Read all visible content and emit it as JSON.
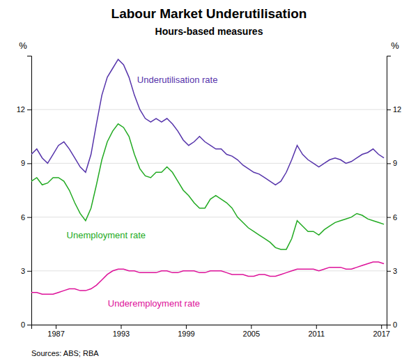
{
  "chart_data": {
    "type": "line",
    "title": "Labour Market Underutilisation",
    "subtitle": "Hours-based measures",
    "y_label": "%",
    "y2_label": "%",
    "source": "Sources: ABS; RBA",
    "grid": true,
    "xlim": [
      1984.75,
      2017.5
    ],
    "xticks": [
      1987,
      1993,
      1999,
      2005,
      2011,
      2017
    ],
    "ylim": [
      0,
      15
    ],
    "yticks": [
      0,
      3,
      6,
      9,
      12
    ],
    "y2lim": [
      0,
      15
    ],
    "y2ticks": [
      0,
      3,
      6,
      9,
      12
    ],
    "x": [
      1984.75,
      1985.25,
      1985.75,
      1986.25,
      1986.75,
      1987.25,
      1987.75,
      1988.25,
      1988.75,
      1989.25,
      1989.75,
      1990.25,
      1990.75,
      1991.25,
      1991.75,
      1992.25,
      1992.75,
      1993.25,
      1993.75,
      1994.25,
      1994.75,
      1995.25,
      1995.75,
      1996.25,
      1996.75,
      1997.25,
      1997.75,
      1998.25,
      1998.75,
      1999.25,
      1999.75,
      2000.25,
      2000.75,
      2001.25,
      2001.75,
      2002.25,
      2002.75,
      2003.25,
      2003.75,
      2004.25,
      2004.75,
      2005.25,
      2005.75,
      2006.25,
      2006.75,
      2007.25,
      2007.75,
      2008.25,
      2008.75,
      2009.25,
      2009.75,
      2010.25,
      2010.75,
      2011.25,
      2011.75,
      2012.25,
      2012.75,
      2013.25,
      2013.75,
      2014.25,
      2014.75,
      2015.25,
      2015.75,
      2016.25,
      2016.75,
      2017.25
    ],
    "series": [
      {
        "color": "#5533aa",
        "values": [
          9.5,
          9.8,
          9.3,
          9.0,
          9.5,
          10.0,
          10.2,
          9.8,
          9.3,
          8.8,
          8.5,
          9.5,
          11.2,
          12.8,
          13.8,
          14.3,
          14.8,
          14.5,
          13.8,
          12.8,
          12.0,
          11.5,
          11.3,
          11.5,
          11.3,
          11.5,
          11.2,
          10.8,
          10.3,
          10.0,
          10.2,
          10.5,
          10.2,
          10.0,
          9.8,
          9.8,
          9.5,
          9.4,
          9.2,
          8.9,
          8.7,
          8.5,
          8.4,
          8.2,
          8.0,
          7.8,
          8.0,
          8.5,
          9.2,
          10.0,
          9.5,
          9.2,
          9.0,
          8.8,
          9.0,
          9.2,
          9.3,
          9.2,
          9.0,
          9.1,
          9.3,
          9.5,
          9.6,
          9.8,
          9.5,
          9.3
        ]
      },
      {
        "color": "#22aa22",
        "values": [
          8.0,
          8.2,
          7.8,
          7.9,
          8.2,
          8.2,
          8.0,
          7.5,
          6.8,
          6.2,
          5.8,
          6.5,
          7.8,
          9.2,
          10.2,
          10.8,
          11.2,
          11.0,
          10.5,
          9.5,
          8.7,
          8.3,
          8.2,
          8.5,
          8.5,
          8.8,
          8.5,
          8.0,
          7.5,
          7.2,
          6.8,
          6.5,
          6.5,
          7.0,
          7.2,
          7.0,
          6.8,
          6.5,
          6.0,
          5.7,
          5.4,
          5.2,
          5.0,
          4.8,
          4.6,
          4.3,
          4.2,
          4.2,
          4.8,
          5.8,
          5.5,
          5.2,
          5.2,
          5.0,
          5.3,
          5.5,
          5.7,
          5.8,
          5.9,
          6.0,
          6.2,
          6.1,
          5.9,
          5.8,
          5.7,
          5.6
        ]
      },
      {
        "color": "#dd1199",
        "values": [
          1.8,
          1.8,
          1.7,
          1.7,
          1.7,
          1.8,
          1.9,
          2.0,
          2.0,
          1.9,
          1.9,
          2.0,
          2.2,
          2.5,
          2.8,
          3.0,
          3.1,
          3.1,
          3.0,
          3.0,
          2.9,
          2.9,
          2.9,
          2.9,
          3.0,
          3.0,
          2.9,
          2.9,
          3.0,
          3.0,
          3.0,
          2.9,
          2.9,
          3.0,
          3.0,
          3.0,
          2.9,
          2.8,
          2.8,
          2.8,
          2.7,
          2.7,
          2.8,
          2.8,
          2.7,
          2.7,
          2.8,
          2.9,
          3.0,
          3.1,
          3.1,
          3.1,
          3.1,
          3.0,
          3.1,
          3.2,
          3.2,
          3.2,
          3.1,
          3.1,
          3.2,
          3.3,
          3.4,
          3.5,
          3.5,
          3.4
        ]
      }
    ],
    "annotations": [
      {
        "text": "Underutilisation rate",
        "x": 1994.5,
        "y": 13.5,
        "color": "#5533aa"
      },
      {
        "text": "Unemployment rate",
        "x": 1988.0,
        "y": 4.8,
        "color": "#22aa22"
      },
      {
        "text": "Underemployment rate",
        "x": 1991.8,
        "y": 1.0,
        "color": "#dd1199"
      }
    ]
  }
}
